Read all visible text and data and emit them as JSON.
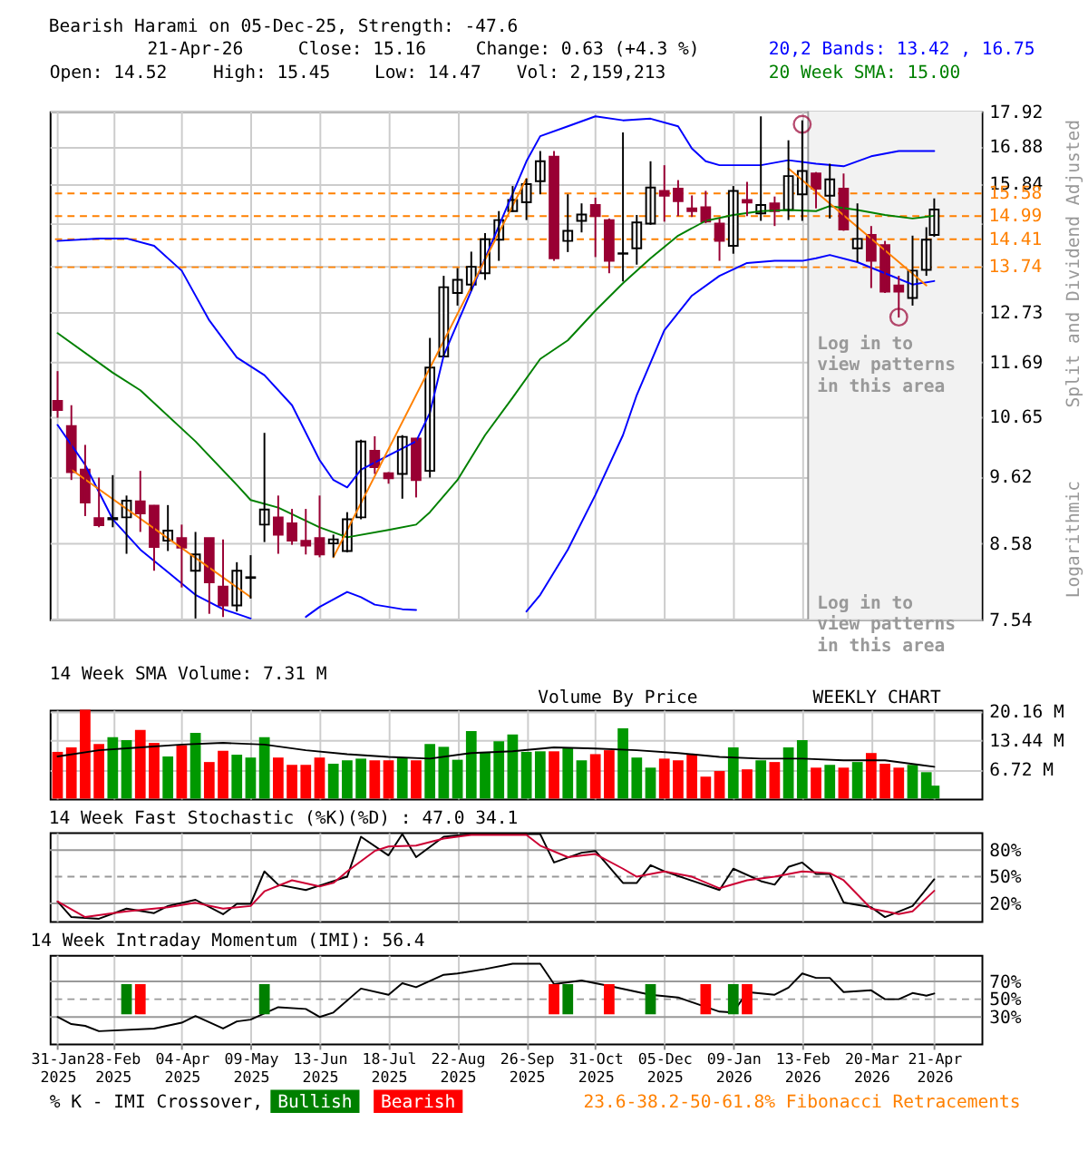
{
  "chart_data": [
    {
      "type": "candlestick",
      "title": "Bearish Harami on 05-Dec-25, Strength: -47.6",
      "ylabel": "Split and Dividend Adjusted",
      "x": [
        "2025-01-31",
        "2025-02-07",
        "2025-02-14",
        "2025-02-21",
        "2025-02-28",
        "2025-03-07",
        "2025-03-14",
        "2025-03-21",
        "2025-03-28",
        "2025-04-04",
        "2025-04-11",
        "2025-04-18",
        "2025-04-25",
        "2025-05-02",
        "2025-05-09",
        "2025-05-16",
        "2025-05-23",
        "2025-05-30",
        "2025-06-06",
        "2025-06-13",
        "2025-06-20",
        "2025-06-27",
        "2025-07-04",
        "2025-07-11",
        "2025-07-18",
        "2025-07-25",
        "2025-08-01",
        "2025-08-08",
        "2025-08-15",
        "2025-08-22",
        "2025-08-29",
        "2025-09-05",
        "2025-09-12",
        "2025-09-19",
        "2025-09-26",
        "2025-10-03",
        "2025-10-10",
        "2025-10-17",
        "2025-10-24",
        "2025-10-31",
        "2025-11-07",
        "2025-11-14",
        "2025-11-21",
        "2025-11-28",
        "2025-12-05",
        "2025-12-12",
        "2025-12-19",
        "2025-12-26",
        "2026-01-02",
        "2026-01-09",
        "2026-01-16",
        "2026-01-23",
        "2026-01-30",
        "2026-02-06",
        "2026-02-13",
        "2026-02-20",
        "2026-02-27",
        "2026-03-06",
        "2026-03-13",
        "2026-03-20",
        "2026-03-27",
        "2026-04-03",
        "2026-04-10",
        "2026-04-17",
        "2026-04-21"
      ],
      "ohlc": [
        [
          10.94,
          11.51,
          10.63,
          10.77
        ],
        [
          10.48,
          10.86,
          9.56,
          9.69
        ],
        [
          9.73,
          10.15,
          8.99,
          9.2
        ],
        [
          8.96,
          9.6,
          8.82,
          8.85
        ],
        [
          8.96,
          9.64,
          8.82,
          8.94
        ],
        [
          8.97,
          9.31,
          8.43,
          9.23
        ],
        [
          9.22,
          9.71,
          8.75,
          9.03
        ],
        [
          9.15,
          9.16,
          8.19,
          8.53
        ],
        [
          8.62,
          9.16,
          8.47,
          8.77
        ],
        [
          8.66,
          8.86,
          7.96,
          8.52
        ],
        [
          8.19,
          8.75,
          7.55,
          8.42
        ],
        [
          8.66,
          8.66,
          7.61,
          8.03
        ],
        [
          7.97,
          8.64,
          7.57,
          7.72
        ],
        [
          7.72,
          8.31,
          7.64,
          8.19
        ],
        [
          8.09,
          8.41,
          7.81,
          8.1
        ],
        [
          8.86,
          10.36,
          8.6,
          9.09
        ],
        [
          8.97,
          9.31,
          8.43,
          8.71
        ],
        [
          8.88,
          9.1,
          8.56,
          8.62
        ],
        [
          8.62,
          9.1,
          8.42,
          8.55
        ],
        [
          8.66,
          9.31,
          8.38,
          8.42
        ],
        [
          8.58,
          8.71,
          8.38,
          8.64
        ],
        [
          8.47,
          9.05,
          8.45,
          8.94
        ],
        [
          8.97,
          10.24,
          8.94,
          10.21
        ],
        [
          10.05,
          10.3,
          9.66,
          9.77
        ],
        [
          9.67,
          9.69,
          9.5,
          9.59
        ],
        [
          9.66,
          10.32,
          9.26,
          10.29
        ],
        [
          10.26,
          10.27,
          9.28,
          9.56
        ],
        [
          9.71,
          12.18,
          9.6,
          11.58
        ],
        [
          11.8,
          13.54,
          11.8,
          13.28
        ],
        [
          13.15,
          13.72,
          12.87,
          13.45
        ],
        [
          13.34,
          14.11,
          13.2,
          13.75
        ],
        [
          13.6,
          14.56,
          13.45,
          14.41
        ],
        [
          14.4,
          15.12,
          13.89,
          14.89
        ],
        [
          15.12,
          15.78,
          15.1,
          15.41
        ],
        [
          15.35,
          15.98,
          14.89,
          15.83
        ],
        [
          15.91,
          16.75,
          15.56,
          16.46
        ],
        [
          16.59,
          16.75,
          13.89,
          13.95
        ],
        [
          14.37,
          15.56,
          14.1,
          14.62
        ],
        [
          14.87,
          15.32,
          14.58,
          15.03
        ],
        [
          15.28,
          15.47,
          13.98,
          14.99
        ],
        [
          14.89,
          14.93,
          13.6,
          13.89
        ],
        [
          14.07,
          17.29,
          13.41,
          14.06
        ],
        [
          14.19,
          15.02,
          13.8,
          14.83
        ],
        [
          14.8,
          16.46,
          14.77,
          15.74
        ],
        [
          15.65,
          16.35,
          14.85,
          15.52
        ],
        [
          15.71,
          15.94,
          14.99,
          15.38
        ],
        [
          15.19,
          15.53,
          14.97,
          15.12
        ],
        [
          15.22,
          15.65,
          14.81,
          14.85
        ],
        [
          14.8,
          14.93,
          13.89,
          14.37
        ],
        [
          14.25,
          15.78,
          14.06,
          15.65
        ],
        [
          15.41,
          15.89,
          14.99,
          15.34
        ],
        [
          15.06,
          17.77,
          14.87,
          15.28
        ],
        [
          15.32,
          15.5,
          14.74,
          15.12
        ],
        [
          15.15,
          17.06,
          14.89,
          16.05
        ],
        [
          15.56,
          17.65,
          14.87,
          16.19
        ],
        [
          16.12,
          16.16,
          15.19,
          15.71
        ],
        [
          15.52,
          16.39,
          14.93,
          15.96
        ],
        [
          15.71,
          16.12,
          14.62,
          14.65
        ],
        [
          14.19,
          15.32,
          13.86,
          14.42
        ],
        [
          14.52,
          14.74,
          13.26,
          13.89
        ],
        [
          14.27,
          14.37,
          13.15,
          13.18
        ],
        [
          13.32,
          13.54,
          12.61,
          13.18
        ],
        [
          13.04,
          14.5,
          12.87,
          13.66
        ],
        [
          13.68,
          14.71,
          13.54,
          14.4
        ],
        [
          14.52,
          15.45,
          14.47,
          15.16
        ]
      ],
      "colors": [
        "#990033",
        "#990033",
        "#990033",
        "#990033",
        "#000000",
        "#ffffff",
        "#990033",
        "#990033",
        "#ffffff",
        "#990033",
        "#ffffff",
        "#990033",
        "#990033",
        "#ffffff",
        "#000000",
        "#ffffff",
        "#990033",
        "#990033",
        "#990033",
        "#990033",
        "#ffffff",
        "#ffffff",
        "#ffffff",
        "#990033",
        "#990033",
        "#ffffff",
        "#990033",
        "#ffffff",
        "#ffffff",
        "#ffffff",
        "#ffffff",
        "#ffffff",
        "#ffffff",
        "#ffffff",
        "#ffffff",
        "#ffffff",
        "#990033",
        "#ffffff",
        "#ffffff",
        "#990033",
        "#990033",
        "#000000",
        "#ffffff",
        "#ffffff",
        "#990033",
        "#990033",
        "#990033",
        "#990033",
        "#990033",
        "#ffffff",
        "#990033",
        "#ffffff",
        "#990033",
        "#ffffff",
        "#ffffff",
        "#990033",
        "#ffffff",
        "#990033",
        "#ffffff",
        "#990033",
        "#990033",
        "#990033",
        "#ffffff",
        "#ffffff",
        "#ffffff"
      ],
      "series": [
        {
          "type": "line",
          "color": "#0000ff",
          "x": [
            "2025-01-31",
            "2025-02-21",
            "2025-03-07",
            "2025-03-21",
            "2025-04-04",
            "2025-04-18",
            "2025-05-02",
            "2025-05-16",
            "2025-05-30",
            "2025-06-13",
            "2025-06-20",
            "2025-06-27",
            "2025-07-04",
            "2025-07-18",
            "2025-08-01",
            "2025-08-08",
            "2025-08-15",
            "2025-08-29",
            "2025-09-12",
            "2025-09-26",
            "2025-10-03",
            "2025-10-17",
            "2025-10-31",
            "2025-11-14",
            "2025-11-28",
            "2025-12-12",
            "2025-12-19",
            "2025-12-26",
            "2026-01-02",
            "2026-01-23",
            "2026-02-06",
            "2026-02-20",
            "2026-03-06",
            "2026-03-20",
            "2026-04-03",
            "2026-04-21"
          ],
          "values": [
            14.37,
            14.43,
            14.43,
            14.25,
            13.66,
            12.55,
            11.78,
            11.43,
            10.86,
            9.89,
            9.56,
            9.44,
            9.73,
            9.97,
            10.21,
            10.72,
            11.82,
            13.2,
            14.74,
            16.46,
            17.18,
            17.47,
            17.77,
            17.65,
            17.7,
            17.47,
            16.82,
            16.46,
            16.35,
            16.35,
            16.49,
            16.39,
            16.32,
            16.6,
            16.75,
            16.75
          ]
        },
        {
          "type": "line",
          "color": "#0000ff",
          "x": [
            "2025-01-31",
            "2025-02-14",
            "2025-02-28",
            "2025-03-14",
            "2025-03-28",
            "2025-04-11",
            "2025-04-25",
            "2025-05-09",
            "2025-05-16",
            "2025-06-06",
            "2025-06-13",
            "2025-06-27",
            "2025-07-04",
            "2025-07-11",
            "2025-07-25",
            "2025-08-01",
            "2025-08-08",
            "2025-09-26",
            "2025-10-03",
            "2025-10-17",
            "2025-10-31",
            "2025-11-14",
            "2025-11-21",
            "2025-12-05",
            "2025-12-19",
            "2026-01-02",
            "2026-01-16",
            "2026-01-30",
            "2026-02-13",
            "2026-02-20",
            "2026-02-27",
            "2026-03-13",
            "2026-03-27",
            "2026-04-10",
            "2026-04-21"
          ],
          "values": [
            10.5,
            9.81,
            8.94,
            8.49,
            8.17,
            7.86,
            7.67,
            7.55,
            null,
            7.57,
            7.7,
            7.9,
            7.83,
            7.73,
            7.67,
            7.66,
            null,
            7.64,
            7.86,
            8.49,
            9.32,
            10.32,
            11.05,
            12.34,
            13.09,
            13.54,
            13.84,
            13.89,
            13.89,
            13.95,
            14.03,
            13.86,
            13.6,
            13.34,
            13.42
          ]
        },
        {
          "type": "line",
          "color": "#008000",
          "x": [
            "2025-01-31",
            "2025-02-28",
            "2025-03-14",
            "2025-04-11",
            "2025-05-02",
            "2025-05-09",
            "2025-05-23",
            "2025-06-13",
            "2025-06-27",
            "2025-07-18",
            "2025-08-01",
            "2025-08-08",
            "2025-08-22",
            "2025-09-05",
            "2025-09-19",
            "2025-10-03",
            "2025-10-17",
            "2025-10-31",
            "2025-11-14",
            "2025-11-28",
            "2025-12-12",
            "2025-12-26",
            "2026-01-09",
            "2026-01-23",
            "2026-02-06",
            "2026-02-20",
            "2026-02-27",
            "2026-03-13",
            "2026-03-27",
            "2026-04-10",
            "2026-04-21"
          ],
          "values": [
            12.28,
            11.48,
            11.14,
            10.21,
            9.48,
            9.24,
            9.12,
            8.82,
            8.67,
            8.78,
            8.86,
            9.05,
            9.56,
            10.32,
            11.0,
            11.75,
            12.13,
            12.76,
            13.37,
            13.95,
            14.5,
            14.87,
            15.02,
            15.12,
            15.15,
            15.12,
            15.25,
            15.15,
            15.02,
            14.93,
            15.0
          ]
        },
        {
          "type": "line",
          "color": "#ff8000",
          "x": [
            "2025-02-07",
            "2025-05-09"
          ],
          "values": [
            9.73,
            7.83
          ]
        },
        {
          "type": "line",
          "color": "#ff8000",
          "x": [
            "2025-06-20",
            "2025-09-26"
          ],
          "values": [
            8.38,
            15.98
          ]
        },
        {
          "type": "line",
          "color": "#ff8000",
          "x": [
            "2026-02-06",
            "2026-04-17"
          ],
          "values": [
            16.26,
            13.32
          ]
        },
        {
          "type": "scatter",
          "marker": "circle",
          "color": "#990033",
          "x": [
            "2026-02-13",
            "2026-04-03"
          ],
          "values": [
            17.53,
            12.62
          ]
        }
      ],
      "xlim": [
        "2025-01-27",
        "2026-05-15"
      ],
      "xticks": [
        {
          "value": "2025-01-31",
          "label": null
        },
        {
          "value": "2025-02-28",
          "label": null
        },
        {
          "value": "2025-04-04",
          "label": null
        },
        {
          "value": "2025-05-09",
          "label": null
        },
        {
          "value": "2025-06-13",
          "label": null
        },
        {
          "value": "2025-07-18",
          "label": null
        },
        {
          "value": "2025-08-22",
          "label": null
        },
        {
          "value": "2025-09-26",
          "label": null
        },
        {
          "value": "2025-10-31",
          "label": null
        },
        {
          "value": "2025-12-05",
          "label": null
        },
        {
          "value": "2026-01-09",
          "label": null
        },
        {
          "value": "2026-02-13",
          "label": null
        },
        {
          "value": "2026-03-20",
          "label": null
        },
        {
          "value": "2026-04-21",
          "label": null
        }
      ],
      "ylim": [
        7.54,
        17.92
      ],
      "yticks": [
        7.54,
        8.58,
        9.62,
        10.65,
        11.69,
        12.73,
        {
          "value": 13.76,
          "label": null
        },
        {
          "value": 14.8,
          "label": null
        },
        15.84,
        16.88,
        17.92
      ],
      "log": true,
      "grid": true,
      "tick_labels": "y",
      "ref_lines": [
        {
          "axis": "y",
          "value": 15.58,
          "label": "15.58",
          "color": "#ff8000",
          "line_style": "dashed"
        },
        {
          "axis": "y",
          "value": 14.99,
          "label": "14.99",
          "color": "#ff8000",
          "line_style": "dashed"
        },
        {
          "axis": "y",
          "value": 14.41,
          "label": "14.41",
          "color": "#ff8000",
          "line_style": "dashed"
        },
        {
          "axis": "y",
          "value": 13.74,
          "label": "13.74",
          "color": "#ff8000",
          "line_style": "dashed"
        },
        {
          "axis": "x",
          "value": "2026-02-16",
          "color": "#999999",
          "line_style": "solid"
        }
      ],
      "bands": [
        {
          "axis": "x",
          "from": "2026-02-16",
          "to": "2026-05-15",
          "label": "Log in to view patterns in this area",
          "color": "#f2f2f2"
        }
      ],
      "annotations": [
        "21-Apr-26",
        "Close: 15.16",
        "Change: 0.63 (+4.3 %)",
        "20,2 Bands: 13.42 , 16.75",
        "Open: 14.52",
        "High: 15.45",
        "Low: 14.47",
        "Vol: 2,159,213",
        "20 Week SMA: 15.00",
        "Logarithmic",
        "Log in to view patterns in this area"
      ]
    },
    {
      "type": "bar",
      "title": "14 Week SMA Volume: 7.31 M",
      "x": [
        "2025-01-31",
        "2025-02-07",
        "2025-02-14",
        "2025-02-21",
        "2025-02-28",
        "2025-03-07",
        "2025-03-14",
        "2025-03-21",
        "2025-03-28",
        "2025-04-04",
        "2025-04-11",
        "2025-04-18",
        "2025-04-25",
        "2025-05-02",
        "2025-05-09",
        "2025-05-16",
        "2025-05-23",
        "2025-05-30",
        "2025-06-06",
        "2025-06-13",
        "2025-06-20",
        "2025-06-27",
        "2025-07-04",
        "2025-07-11",
        "2025-07-18",
        "2025-07-25",
        "2025-08-01",
        "2025-08-08",
        "2025-08-15",
        "2025-08-22",
        "2025-08-29",
        "2025-09-05",
        "2025-09-12",
        "2025-09-19",
        "2025-09-26",
        "2025-10-03",
        "2025-10-10",
        "2025-10-17",
        "2025-10-24",
        "2025-10-31",
        "2025-11-07",
        "2025-11-14",
        "2025-11-21",
        "2025-11-28",
        "2025-12-05",
        "2025-12-12",
        "2025-12-19",
        "2025-12-26",
        "2026-01-02",
        "2026-01-09",
        "2026-01-16",
        "2026-01-23",
        "2026-01-30",
        "2026-02-06",
        "2026-02-13",
        "2026-02-20",
        "2026-02-27",
        "2026-03-06",
        "2026-03-13",
        "2026-03-20",
        "2026-03-27",
        "2026-04-03",
        "2026-04-10",
        "2026-04-17",
        "2026-04-21"
      ],
      "series": [
        {
          "type": "bar",
          "values": [
            10.73,
            11.76,
            20.4,
            12.54,
            14.09,
            13.44,
            15.77,
            12.79,
            9.69,
            12.28,
            15.12,
            8.4,
            10.98,
            10.08,
            9.43,
            14.09,
            9.43,
            7.75,
            7.75,
            9.43,
            8.01,
            8.79,
            9.18,
            8.79,
            8.79,
            9.43,
            8.79,
            12.54,
            11.89,
            8.92,
            15.51,
            10.73,
            13.18,
            14.73,
            10.73,
            10.86,
            10.86,
            11.76,
            8.79,
            10.21,
            11.11,
            16.15,
            9.43,
            7.11,
            9.18,
            8.79,
            10.21,
            5.04,
            6.33,
            11.76,
            6.72,
            8.79,
            8.4,
            11.76,
            13.44,
            7.11,
            7.75,
            7.11,
            8.4,
            10.47,
            8.01,
            7.11,
            7.75,
            6.07,
            2.97
          ],
          "colors": [
            "#ff0000",
            "#ff0000",
            "#ff0000",
            "#ff0000",
            "#009900",
            "#009900",
            "#ff0000",
            "#ff0000",
            "#009900",
            "#ff0000",
            "#009900",
            "#ff0000",
            "#ff0000",
            "#009900",
            "#009900",
            "#009900",
            "#ff0000",
            "#ff0000",
            "#ff0000",
            "#ff0000",
            "#009900",
            "#009900",
            "#009900",
            "#ff0000",
            "#ff0000",
            "#009900",
            "#ff0000",
            "#009900",
            "#009900",
            "#009900",
            "#009900",
            "#009900",
            "#009900",
            "#009900",
            "#009900",
            "#009900",
            "#ff0000",
            "#009900",
            "#009900",
            "#ff0000",
            "#ff0000",
            "#009900",
            "#009900",
            "#009900",
            "#ff0000",
            "#ff0000",
            "#ff0000",
            "#ff0000",
            "#ff0000",
            "#009900",
            "#ff0000",
            "#009900",
            "#ff0000",
            "#009900",
            "#009900",
            "#ff0000",
            "#009900",
            "#ff0000",
            "#009900",
            "#ff0000",
            "#ff0000",
            "#ff0000",
            "#009900",
            "#009900",
            "#009900"
          ]
        },
        {
          "type": "line",
          "color": "#000000",
          "x": [
            "2025-01-31",
            "2025-02-21",
            "2025-03-14",
            "2025-04-04",
            "2025-04-25",
            "2025-05-16",
            "2025-06-06",
            "2025-06-27",
            "2025-07-18",
            "2025-08-08",
            "2025-08-29",
            "2025-09-19",
            "2025-10-10",
            "2025-10-31",
            "2025-11-21",
            "2025-12-12",
            "2026-01-02",
            "2026-01-23",
            "2026-02-13",
            "2026-03-06",
            "2026-03-27",
            "2026-04-21"
          ],
          "values": [
            9.69,
            11.11,
            11.76,
            12.41,
            12.79,
            12.41,
            11.11,
            10.21,
            9.56,
            9.18,
            10.47,
            10.86,
            11.76,
            11.5,
            11.11,
            10.47,
            9.56,
            9.18,
            9.18,
            8.79,
            8.79,
            7.31
          ]
        }
      ],
      "xlim": [
        "2025-01-27",
        "2026-05-15"
      ],
      "xticks": [
        {
          "value": "2025-01-31",
          "label": null
        },
        {
          "value": "2025-02-28",
          "label": null
        },
        {
          "value": "2025-04-04",
          "label": null
        },
        {
          "value": "2025-05-09",
          "label": null
        },
        {
          "value": "2025-06-13",
          "label": null
        },
        {
          "value": "2025-07-18",
          "label": null
        },
        {
          "value": "2025-08-22",
          "label": null
        },
        {
          "value": "2025-09-26",
          "label": null
        },
        {
          "value": "2025-10-31",
          "label": null
        },
        {
          "value": "2025-12-05",
          "label": null
        },
        {
          "value": "2026-01-09",
          "label": null
        },
        {
          "value": "2026-02-13",
          "label": null
        },
        {
          "value": "2026-03-20",
          "label": null
        },
        {
          "value": "2026-04-21",
          "label": null
        }
      ],
      "ylim": [
        0,
        20.4
      ],
      "yticks": [
        {
          "value": 6.72,
          "label": "6.72 M"
        },
        {
          "value": 13.44,
          "label": "13.44 M"
        },
        {
          "value": 20.16,
          "label": "20.16 M"
        }
      ],
      "grid": true,
      "tick_labels": "y",
      "annotations": [
        "Volume By Price",
        "WEEKLY CHART"
      ]
    },
    {
      "type": "line",
      "title": "14 Week Fast Stochastic (%K)(%D) : 47.0 34.1",
      "series": [
        {
          "color": "#000000",
          "x": [
            "2025-01-31",
            "2025-02-07",
            "2025-02-21",
            "2025-03-07",
            "2025-03-21",
            "2025-03-28",
            "2025-04-11",
            "2025-04-25",
            "2025-05-02",
            "2025-05-09",
            "2025-05-16",
            "2025-05-23",
            "2025-06-06",
            "2025-06-13",
            "2025-06-27",
            "2025-07-04",
            "2025-07-18",
            "2025-07-25",
            "2025-08-01",
            "2025-08-15",
            "2025-08-29",
            "2025-09-26",
            "2025-10-03",
            "2025-10-10",
            "2025-10-24",
            "2025-10-31",
            "2025-11-14",
            "2025-11-21",
            "2025-11-28",
            "2025-12-05",
            "2026-01-02",
            "2026-01-09",
            "2026-01-23",
            "2026-01-30",
            "2026-02-06",
            "2026-02-13",
            "2026-02-20",
            "2026-02-27",
            "2026-03-06",
            "2026-03-20",
            "2026-03-27",
            "2026-04-10",
            "2026-04-21"
          ],
          "values": [
            22,
            4.5,
            2.6,
            14,
            9,
            17,
            24,
            7.7,
            19.4,
            19.4,
            56,
            41,
            35,
            40,
            50,
            95,
            74,
            98,
            72,
            95,
            98,
            98,
            98,
            66,
            77,
            79,
            43,
            43,
            63,
            56,
            35,
            59,
            45,
            41,
            61,
            66,
            53,
            53,
            21,
            15.5,
            4.5,
            17,
            47.0
          ]
        },
        {
          "color": "#cc0033",
          "x": [
            "2025-01-31",
            "2025-02-14",
            "2025-03-07",
            "2025-03-28",
            "2025-04-11",
            "2025-04-25",
            "2025-05-09",
            "2025-05-16",
            "2025-05-30",
            "2025-06-13",
            "2025-06-20",
            "2025-06-27",
            "2025-07-11",
            "2025-07-18",
            "2025-08-01",
            "2025-08-15",
            "2025-08-29",
            "2025-09-26",
            "2025-10-03",
            "2025-10-17",
            "2025-10-31",
            "2025-11-14",
            "2025-11-21",
            "2025-12-05",
            "2025-12-19",
            "2026-01-02",
            "2026-01-16",
            "2026-01-30",
            "2026-02-13",
            "2026-02-27",
            "2026-03-06",
            "2026-03-20",
            "2026-04-03",
            "2026-04-10",
            "2026-04-21"
          ],
          "values": [
            22,
            4.5,
            11,
            15.5,
            20.6,
            14,
            17,
            33.5,
            46,
            39,
            43,
            56,
            79,
            84,
            85,
            93,
            97,
            97,
            85,
            72,
            75.5,
            59,
            50,
            56,
            50,
            37,
            46,
            50,
            56,
            54,
            46,
            14,
            8,
            11,
            34.1
          ]
        }
      ],
      "xlim": [
        "2025-01-27",
        "2026-05-15"
      ],
      "xticks": [
        {
          "value": "2025-01-31",
          "label": null
        },
        {
          "value": "2025-02-28",
          "label": null
        },
        {
          "value": "2025-04-04",
          "label": null
        },
        {
          "value": "2025-05-09",
          "label": null
        },
        {
          "value": "2025-06-13",
          "label": null
        },
        {
          "value": "2025-07-18",
          "label": null
        },
        {
          "value": "2025-08-22",
          "label": null
        },
        {
          "value": "2025-09-26",
          "label": null
        },
        {
          "value": "2025-10-31",
          "label": null
        },
        {
          "value": "2025-12-05",
          "label": null
        },
        {
          "value": "2026-01-09",
          "label": null
        },
        {
          "value": "2026-02-13",
          "label": null
        },
        {
          "value": "2026-03-20",
          "label": null
        },
        {
          "value": "2026-04-21",
          "label": null
        }
      ],
      "ylim": [
        0,
        100
      ],
      "yticks": [
        {
          "value": 20,
          "label": "20%"
        },
        {
          "value": 50,
          "label": "50%"
        },
        {
          "value": 80,
          "label": "80%"
        }
      ],
      "grid": "x",
      "tick_labels": "y",
      "ref_lines": [
        {
          "axis": "y",
          "value": 80,
          "color": "#999999",
          "line_style": "solid"
        },
        {
          "axis": "y",
          "value": 50,
          "color": "#999999",
          "line_style": "dashed"
        },
        {
          "axis": "y",
          "value": 20,
          "color": "#999999",
          "line_style": "solid"
        }
      ]
    },
    {
      "type": "line",
      "title": "14 Week Intraday Momentum (IMI): 56.4",
      "series": [
        {
          "color": "#000000",
          "x": [
            "2025-01-31",
            "2025-02-07",
            "2025-02-14",
            "2025-02-21",
            "2025-03-21",
            "2025-04-04",
            "2025-04-11",
            "2025-04-25",
            "2025-05-02",
            "2025-05-09",
            "2025-05-23",
            "2025-06-06",
            "2025-06-13",
            "2025-06-20",
            "2025-07-04",
            "2025-07-18",
            "2025-07-25",
            "2025-08-01",
            "2025-08-15",
            "2025-08-22",
            "2025-09-05",
            "2025-09-19",
            "2025-10-03",
            "2025-10-10",
            "2025-10-24",
            "2025-11-07",
            "2025-11-28",
            "2025-12-12",
            "2026-01-02",
            "2026-01-09",
            "2026-01-16",
            "2026-01-30",
            "2026-02-06",
            "2026-02-13",
            "2026-02-20",
            "2026-02-27",
            "2026-03-06",
            "2026-03-20",
            "2026-03-27",
            "2026-04-03",
            "2026-04-10",
            "2026-04-17",
            "2026-04-21"
          ],
          "values": [
            30,
            22,
            20,
            14,
            17,
            23.5,
            31,
            17,
            25,
            27,
            41,
            39,
            30,
            35,
            62,
            55,
            68,
            63.5,
            77.5,
            79,
            84,
            90,
            90,
            67,
            71,
            65,
            55,
            52,
            36,
            35,
            58,
            55,
            63,
            79,
            74,
            74,
            58,
            60,
            50,
            50,
            57,
            54,
            56.4
          ]
        },
        {
          "type": "bar",
          "name": "Bullish",
          "color": "#008000",
          "x": [
            "2025-03-07",
            "2025-05-16",
            "2025-10-17",
            "2025-11-28",
            "2026-01-09"
          ],
          "base": [
            33,
            33,
            33,
            33,
            33
          ],
          "values": [
            34,
            34,
            34,
            34,
            34
          ]
        },
        {
          "type": "bar",
          "name": "Bearish",
          "color": "#ff0000",
          "x": [
            "2025-03-14",
            "2025-10-10",
            "2025-11-07",
            "2025-12-26",
            "2026-01-16"
          ],
          "base": [
            33,
            33,
            33,
            33,
            33
          ],
          "values": [
            34,
            34,
            34,
            34,
            34
          ]
        }
      ],
      "xlim": [
        "2025-01-27",
        "2026-05-15"
      ],
      "xticks": [
        {
          "value": "2025-01-31",
          "label": "31-Jan 2025"
        },
        {
          "value": "2025-02-28",
          "label": "28-Feb 2025"
        },
        {
          "value": "2025-04-04",
          "label": "04-Apr 2025"
        },
        {
          "value": "2025-05-09",
          "label": "09-May 2025"
        },
        {
          "value": "2025-06-13",
          "label": "13-Jun 2025"
        },
        {
          "value": "2025-07-18",
          "label": "18-Jul 2025"
        },
        {
          "value": "2025-08-22",
          "label": "22-Aug 2025"
        },
        {
          "value": "2025-09-26",
          "label": "26-Sep 2025"
        },
        {
          "value": "2025-10-31",
          "label": "31-Oct 2025"
        },
        {
          "value": "2025-12-05",
          "label": "05-Dec 2025"
        },
        {
          "value": "2026-01-09",
          "label": "09-Jan 2026"
        },
        {
          "value": "2026-02-13",
          "label": "13-Feb 2026"
        },
        {
          "value": "2026-03-20",
          "label": "20-Mar 2026"
        },
        {
          "value": "2026-04-21",
          "label": "21-Apr 2026"
        }
      ],
      "ylim": [
        0,
        100
      ],
      "yticks": [
        {
          "value": 30,
          "label": "30%"
        },
        {
          "value": 50,
          "label": "50%"
        },
        {
          "value": 70,
          "label": "70%"
        }
      ],
      "grid": "x",
      "legend": "bottom",
      "ref_lines": [
        {
          "axis": "y",
          "value": 70,
          "color": "#999999",
          "line_style": "solid"
        },
        {
          "axis": "y",
          "value": 50,
          "color": "#999999",
          "line_style": "dashed"
        },
        {
          "axis": "y",
          "value": 30,
          "color": "#999999",
          "line_style": "solid"
        }
      ],
      "annotations": [
        "% K - IMI Crossover,",
        "23.6-38.2-50-61.8% Fibonacci Retracements"
      ]
    }
  ]
}
